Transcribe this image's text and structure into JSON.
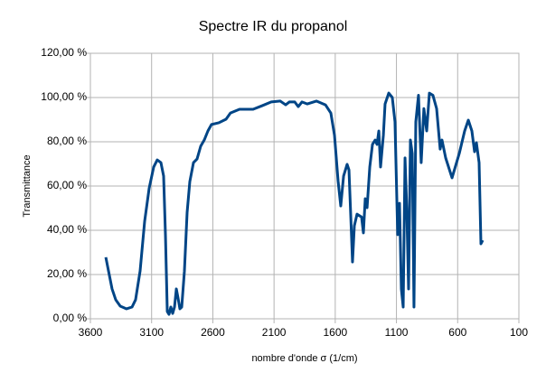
{
  "chart_data": {
    "type": "line",
    "title": "Spectre IR du propanol",
    "x_label": "nombre d'onde σ (1/cm)",
    "y_label": "Transmittance",
    "xlim": [
      3600,
      100
    ],
    "xticks": [
      3600,
      3100,
      2600,
      2100,
      1600,
      1100,
      600,
      100
    ],
    "ylim": [
      0,
      120
    ],
    "yticks": [
      {
        "value": 0,
        "label": "0,00 %"
      },
      {
        "value": 20,
        "label": "20,00 %"
      },
      {
        "value": 40,
        "label": "40,00 %"
      },
      {
        "value": 60,
        "label": "60,00 %"
      },
      {
        "value": 80,
        "label": "80,00 %"
      },
      {
        "value": 100,
        "label": "100,00 %"
      },
      {
        "value": 120,
        "label": "120,00 %"
      }
    ],
    "grid": true,
    "series": [
      {
        "color": "#004586",
        "x": [
          3474,
          3452,
          3423,
          3393,
          3356,
          3305,
          3260,
          3231,
          3194,
          3157,
          3120,
          3083,
          3054,
          3024,
          3002,
          2987,
          2972,
          2958,
          2943,
          2928,
          2913,
          2898,
          2884,
          2869,
          2854,
          2832,
          2810,
          2788,
          2758,
          2729,
          2699,
          2670,
          2640,
          2611,
          2551,
          2492,
          2456,
          2382,
          2271,
          2197,
          2123,
          2049,
          2005,
          1975,
          1931,
          1902,
          1872,
          1828,
          1754,
          1680,
          1636,
          1606,
          1577,
          1555,
          1532,
          1503,
          1488,
          1473,
          1459,
          1444,
          1422,
          1385,
          1370,
          1355,
          1340,
          1318,
          1296,
          1274,
          1259,
          1244,
          1230,
          1207,
          1193,
          1163,
          1134,
          1112,
          1090,
          1075,
          1060,
          1045,
          1030,
          1016,
          1001,
          986,
          971,
          957,
          942,
          920,
          898,
          876,
          853,
          831,
          802,
          772,
          743,
          728,
          698,
          646,
          587,
          543,
          513,
          484,
          462,
          447,
          425,
          410,
          395
        ],
        "values": [
          27.8,
          21.6,
          13.5,
          8.6,
          5.7,
          4.5,
          5.3,
          8.6,
          21.6,
          44,
          59,
          68.6,
          71.8,
          70.6,
          64.5,
          38,
          3.3,
          2,
          5.3,
          2.4,
          5.3,
          13.5,
          9.4,
          4.5,
          5.3,
          21.6,
          48,
          62,
          70.6,
          72.2,
          78,
          80.8,
          84.9,
          87.8,
          88.6,
          90.2,
          93,
          94.7,
          94.7,
          96.3,
          98,
          98.4,
          96.7,
          98,
          98,
          95.9,
          98,
          97.1,
          98.4,
          96.7,
          93,
          82.9,
          62.4,
          51,
          64.5,
          69.8,
          67.3,
          46,
          25.7,
          42,
          47.3,
          46,
          38.8,
          54.3,
          50.2,
          68.6,
          78.8,
          80.8,
          78.8,
          84.9,
          68.6,
          82.9,
          97.1,
          102,
          100,
          89,
          38,
          52.2,
          13.5,
          5.3,
          72.7,
          50.2,
          13.5,
          80.8,
          74.7,
          5.3,
          89,
          101,
          70.6,
          95,
          84.9,
          102,
          101,
          95,
          76.7,
          80.8,
          72.7,
          63.7,
          74.7,
          84.9,
          89.8,
          84.9,
          75.5,
          79.6,
          70.6,
          33.9,
          35.5
        ]
      }
    ]
  }
}
